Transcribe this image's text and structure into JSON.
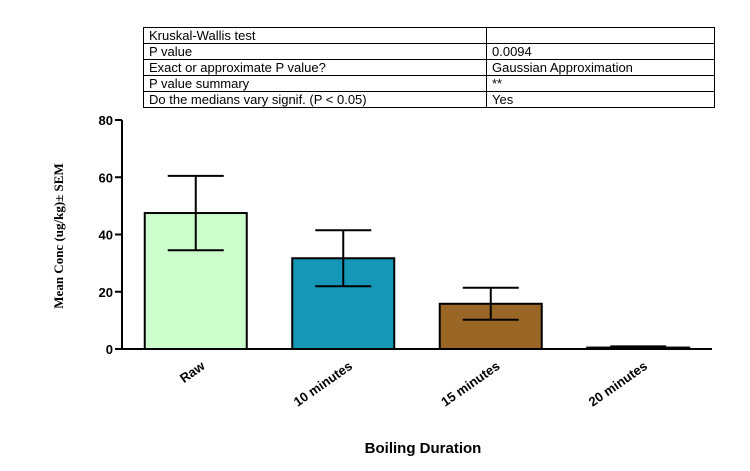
{
  "stats_table": {
    "rows": [
      {
        "label": "Kruskal-Wallis test",
        "value": ""
      },
      {
        "label": "P value",
        "value": "0.0094"
      },
      {
        "label": "Exact or approximate P value?",
        "value": "Gaussian Approximation"
      },
      {
        "label": "P value summary",
        "value": "**"
      },
      {
        "label": "Do the medians vary signif. (P < 0.05)",
        "value": "Yes"
      }
    ]
  },
  "chart_data": {
    "type": "bar",
    "xlabel": "Boiling Duration",
    "ylabel": "Mean Conc (ug/kg)± SEM",
    "ylim": [
      0,
      80
    ],
    "yticks": [
      0,
      20,
      40,
      60,
      80
    ],
    "categories": [
      "Raw",
      "10 minutes",
      "15 minutes",
      "20 minutes"
    ],
    "values": [
      47.5,
      31.7,
      15.8,
      0.5
    ],
    "error": [
      13.0,
      9.8,
      5.6,
      0.4
    ],
    "colors": [
      "#ccffcc",
      "#1597b7",
      "#996625",
      "#333333"
    ]
  }
}
